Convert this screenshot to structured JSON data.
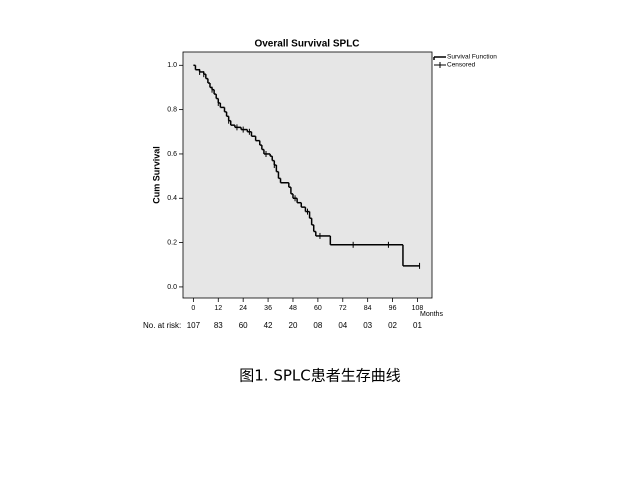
{
  "chart_data": {
    "type": "step",
    "title": "Overall Survival SPLC",
    "x_label": "Months",
    "y_label": "Cum Survival",
    "xlim": [
      -5,
      115
    ],
    "ylim": [
      -0.05,
      1.06
    ],
    "xticks": [
      0,
      12,
      24,
      36,
      48,
      60,
      72,
      84,
      96,
      108
    ],
    "yticks": [
      {
        "value": 0,
        "label": "0.0"
      },
      0.2,
      0.4,
      0.6,
      0.8,
      {
        "value": 1,
        "label": "1.0"
      }
    ],
    "legend": "top-right",
    "background": "#e6e6e6",
    "series": [
      {
        "name": "Survival Function",
        "color": "#000000",
        "x": [
          0,
          1,
          3,
          5,
          6,
          7,
          8,
          9,
          10,
          11,
          12,
          13,
          15,
          16,
          17,
          18,
          20,
          23,
          26,
          28,
          30,
          32,
          33,
          34,
          37,
          38,
          39,
          40,
          41,
          42,
          46,
          47,
          48,
          50,
          52,
          54,
          56,
          57,
          58,
          59,
          66,
          101,
          109
        ],
        "values": [
          1.0,
          0.98,
          0.97,
          0.96,
          0.94,
          0.92,
          0.9,
          0.89,
          0.87,
          0.85,
          0.83,
          0.81,
          0.79,
          0.77,
          0.75,
          0.73,
          0.72,
          0.71,
          0.7,
          0.68,
          0.66,
          0.64,
          0.62,
          0.6,
          0.59,
          0.57,
          0.55,
          0.52,
          0.49,
          0.47,
          0.45,
          0.42,
          0.4,
          0.38,
          0.36,
          0.34,
          0.31,
          0.28,
          0.25,
          0.23,
          0.19,
          0.095,
          0.095
        ]
      },
      {
        "name": "Censored",
        "color": "#000000",
        "x": [
          3,
          5,
          9,
          12,
          17,
          21,
          24,
          27,
          35,
          39,
          49,
          55,
          61,
          77,
          94,
          109
        ],
        "values": [
          0.97,
          0.96,
          0.89,
          0.83,
          0.75,
          0.72,
          0.71,
          0.7,
          0.6,
          0.55,
          0.4,
          0.34,
          0.23,
          0.19,
          0.19,
          0.095
        ]
      }
    ],
    "at_risk_label": "No. at risk:",
    "at_risk": [
      "107",
      "83",
      "60",
      "42",
      "20",
      "08",
      "04",
      "03",
      "02",
      "01"
    ],
    "caption": "图1. SPLC患者生存曲线"
  }
}
